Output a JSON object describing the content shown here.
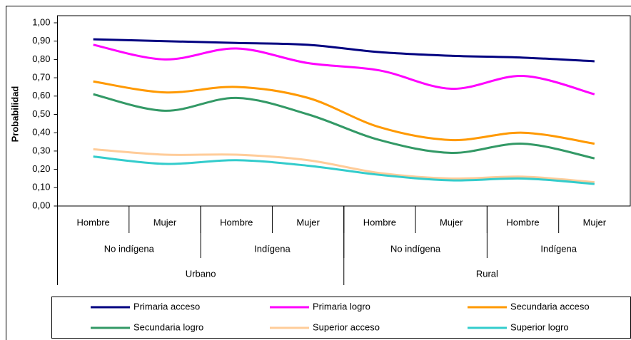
{
  "chart_data": {
    "type": "line",
    "y_label": "Probabilidad",
    "categories": [
      "Hombre",
      "Mujer",
      "Hombre",
      "Mujer",
      "Hombre",
      "Mujer",
      "Hombre",
      "Mujer"
    ],
    "category_groups": [
      "No indígena",
      "Indígena",
      "No indígena",
      "Indígena"
    ],
    "category_supergroups": [
      "Urbano",
      "Rural"
    ],
    "series": [
      {
        "name": "Primaria acceso",
        "color": "#000080",
        "values": [
          0.91,
          0.9,
          0.89,
          0.88,
          0.84,
          0.82,
          0.81,
          0.79
        ]
      },
      {
        "name": "Primaria logro",
        "color": "#ff00ff",
        "values": [
          0.88,
          0.8,
          0.86,
          0.78,
          0.74,
          0.64,
          0.71,
          0.61
        ]
      },
      {
        "name": "Secundaria acceso",
        "color": "#ff9900",
        "values": [
          0.68,
          0.62,
          0.65,
          0.59,
          0.43,
          0.36,
          0.4,
          0.34
        ]
      },
      {
        "name": "Secundaria logro",
        "color": "#339966",
        "values": [
          0.61,
          0.52,
          0.59,
          0.5,
          0.36,
          0.29,
          0.34,
          0.26
        ]
      },
      {
        "name": "Superior acceso",
        "color": "#ffcc99",
        "values": [
          0.31,
          0.28,
          0.28,
          0.25,
          0.18,
          0.15,
          0.16,
          0.13
        ]
      },
      {
        "name": "Superior logro",
        "color": "#33cccc",
        "values": [
          0.27,
          0.23,
          0.25,
          0.22,
          0.17,
          0.14,
          0.15,
          0.12
        ]
      }
    ],
    "ylim": [
      0,
      1
    ],
    "yticks": [
      {
        "value": 0,
        "label": "0,00"
      },
      {
        "value": 0.1,
        "label": "0,10"
      },
      {
        "value": 0.2,
        "label": "0,20"
      },
      {
        "value": 0.3,
        "label": "0,30"
      },
      {
        "value": 0.4,
        "label": "0,40"
      },
      {
        "value": 0.5,
        "label": "0,50"
      },
      {
        "value": 0.6,
        "label": "0,60"
      },
      {
        "value": 0.7,
        "label": "0,70"
      },
      {
        "value": 0.8,
        "label": "0,80"
      },
      {
        "value": 0.9,
        "label": "0,90"
      },
      {
        "value": 1,
        "label": "1,00"
      }
    ],
    "legend": "bottom"
  }
}
